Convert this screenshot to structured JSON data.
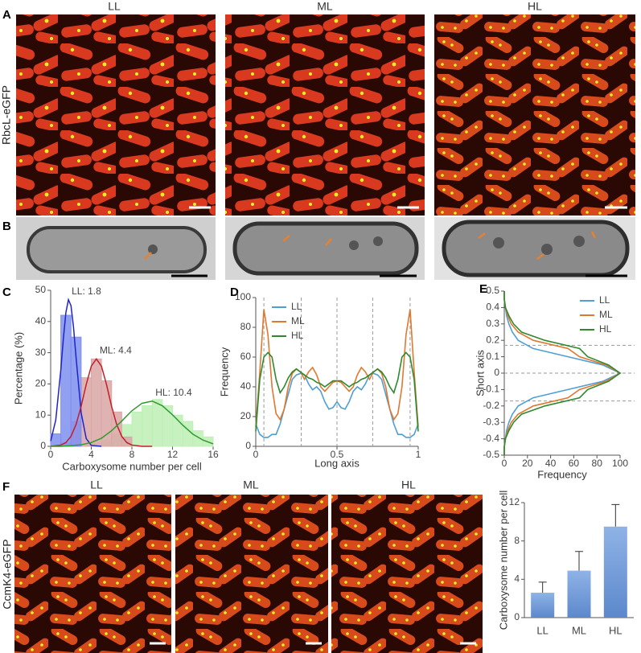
{
  "panel_labels": [
    "A",
    "B",
    "C",
    "D",
    "E",
    "F"
  ],
  "row_a": {
    "label": "RbcL-eGFP",
    "columns": [
      "LL",
      "ML",
      "HL"
    ]
  },
  "row_f": {
    "label": "CcmK4-eGFP",
    "columns": [
      "LL",
      "ML",
      "HL"
    ]
  },
  "chart_data": [
    {
      "type": "histogram",
      "ylabel": "Percentage (%)",
      "xlabel": "Carboxysome number per cell",
      "xlim": [
        0,
        16
      ],
      "xticks": [
        0,
        4,
        8,
        12,
        16
      ],
      "ylim": [
        0,
        50
      ],
      "yticks": [
        0,
        10,
        20,
        30,
        40,
        50
      ],
      "bins": [
        0,
        1,
        2,
        3,
        4,
        5,
        6,
        7,
        8,
        9,
        10,
        11,
        12,
        13,
        14,
        15,
        16
      ],
      "series": [
        {
          "label": "LL: 1.8",
          "color": "#7f8ff0",
          "line_color": "#1f24c8",
          "values": [
            4,
            42,
            35,
            0,
            0,
            0,
            0,
            0,
            0,
            0,
            0,
            0,
            0,
            0,
            0,
            0
          ],
          "fit_x": [
            0,
            0.5,
            1,
            1.25,
            1.5,
            1.75,
            2,
            2.25,
            2.5,
            3,
            3.5,
            4,
            5
          ],
          "fit": [
            1.7,
            8.4,
            24.5,
            34.5,
            42.9,
            47,
            45.1,
            38.2,
            28.5,
            10.8,
            2.5,
            0.3,
            0
          ]
        },
        {
          "label": "ML: 4.4",
          "color": "#dba6a6",
          "line_color": "#c0202a",
          "values": [
            0,
            1,
            8,
            22,
            28,
            21,
            11,
            3,
            0,
            0,
            0,
            0,
            0,
            0,
            0,
            0
          ],
          "fit_x": [
            0,
            1,
            1.5,
            2,
            2.5,
            3,
            3.5,
            4,
            4.5,
            5,
            5.5,
            6,
            6.5,
            7,
            7.5,
            8,
            9,
            10
          ],
          "fit": [
            0,
            0.4,
            1.2,
            3.2,
            7,
            12.8,
            19.8,
            25.7,
            28,
            25.7,
            19.8,
            12.8,
            7,
            3.2,
            1.2,
            0.4,
            0,
            0
          ]
        },
        {
          "label": "HL: 10.4",
          "color": "#bdf0b4",
          "line_color": "#2f9a2f",
          "values": [
            0,
            0,
            0,
            0,
            1,
            2,
            4,
            7,
            11,
            13,
            15,
            13,
            10,
            8,
            5,
            3
          ],
          "fit_x": [
            0,
            1,
            2,
            3,
            4,
            5,
            6,
            7,
            8,
            9,
            10,
            11,
            12,
            13,
            14,
            15,
            16
          ],
          "fit": [
            0,
            0,
            0.2,
            0.5,
            1.2,
            2.6,
            5,
            8.1,
            11.4,
            13.8,
            14.5,
            13,
            10.1,
            6.8,
            3.9,
            2,
            0.8
          ]
        }
      ]
    },
    {
      "type": "line",
      "ylabel": "Frequency",
      "xlabel": "Long axis",
      "legend": "upper center",
      "xlim": [
        0,
        1
      ],
      "xticks": [
        0,
        0.5,
        1
      ],
      "ylim": [
        0,
        100
      ],
      "yticks": [
        0,
        20,
        40,
        60,
        80,
        100
      ],
      "vlines": [
        0.05,
        0.28,
        0.5,
        0.72,
        0.95
      ],
      "x": [
        0,
        0.025,
        0.05,
        0.075,
        0.1,
        0.125,
        0.15,
        0.175,
        0.2,
        0.225,
        0.25,
        0.275,
        0.3,
        0.325,
        0.35,
        0.375,
        0.4,
        0.425,
        0.45,
        0.475,
        0.5,
        0.525,
        0.55,
        0.575,
        0.6,
        0.625,
        0.65,
        0.675,
        0.7,
        0.725,
        0.75,
        0.775,
        0.8,
        0.825,
        0.85,
        0.875,
        0.9,
        0.925,
        0.95,
        0.975,
        1
      ],
      "series": [
        {
          "name": "LL",
          "color": "#4f9fd6",
          "values": [
            15,
            8,
            6,
            6,
            8,
            8,
            15,
            25,
            35,
            45,
            48,
            49,
            48,
            42,
            38,
            40,
            37,
            30,
            25,
            26,
            30,
            26,
            25,
            30,
            37,
            40,
            38,
            42,
            48,
            49,
            48,
            45,
            35,
            25,
            15,
            8,
            8,
            6,
            6,
            8,
            15
          ]
        },
        {
          "name": "ML",
          "color": "#e0782e",
          "values": [
            13,
            50,
            92,
            75,
            40,
            22,
            18,
            25,
            40,
            49,
            52,
            50,
            45,
            50,
            53,
            48,
            40,
            37,
            40,
            43,
            44,
            43,
            40,
            37,
            40,
            48,
            53,
            50,
            45,
            50,
            52,
            49,
            40,
            25,
            18,
            22,
            40,
            75,
            92,
            50,
            13
          ]
        },
        {
          "name": "HL",
          "color": "#2f8a2f",
          "values": [
            10,
            45,
            60,
            63,
            60,
            45,
            36,
            40,
            46,
            50,
            52,
            50,
            48,
            46,
            45,
            43,
            42,
            40,
            42,
            44,
            44,
            44,
            42,
            40,
            42,
            43,
            45,
            46,
            48,
            50,
            52,
            50,
            46,
            40,
            36,
            45,
            60,
            63,
            60,
            45,
            10
          ]
        }
      ]
    },
    {
      "type": "line",
      "orientation": "horizontal",
      "ylabel": "Short axis",
      "xlabel": "Frequency",
      "legend": "upper right",
      "xlim": [
        0,
        100
      ],
      "xticks": [
        0,
        20,
        40,
        60,
        80,
        100
      ],
      "ylim": [
        -0.5,
        0.5
      ],
      "yticks": [
        -0.5,
        -0.4,
        -0.3,
        -0.2,
        -0.1,
        0,
        0.1,
        0.2,
        0.3,
        0.4,
        0.5
      ],
      "hlines": [
        0.17,
        0,
        -0.17
      ],
      "y": [
        -0.5,
        -0.45,
        -0.4,
        -0.35,
        -0.3,
        -0.25,
        -0.2,
        -0.15,
        -0.1,
        -0.05,
        0,
        0.05,
        0.1,
        0.15,
        0.2,
        0.25,
        0.3,
        0.35,
        0.4,
        0.45,
        0.5
      ],
      "series": [
        {
          "name": "LL",
          "color": "#4f9fd6",
          "values": [
            0,
            0,
            1,
            2,
            4,
            7,
            12,
            25,
            55,
            85,
            100,
            85,
            55,
            25,
            12,
            7,
            4,
            2,
            1,
            0,
            0
          ]
        },
        {
          "name": "ML",
          "color": "#e0782e",
          "values": [
            0,
            0,
            1,
            3,
            6,
            12,
            25,
            55,
            65,
            88,
            100,
            88,
            65,
            55,
            25,
            12,
            6,
            3,
            1,
            0,
            0
          ]
        },
        {
          "name": "HL",
          "color": "#2f8a2f",
          "values": [
            0,
            0,
            1,
            4,
            8,
            15,
            35,
            65,
            72,
            90,
            100,
            90,
            72,
            65,
            35,
            15,
            8,
            4,
            1,
            0,
            0
          ]
        }
      ]
    },
    {
      "type": "bar",
      "ylabel": "Carboxysome number per cell",
      "color": "#6f9ad8",
      "categories": [
        "LL",
        "ML",
        "HL"
      ],
      "values": [
        2.6,
        4.9,
        9.5
      ],
      "errors": [
        1.1,
        2.0,
        2.3
      ],
      "ylim": [
        0,
        12
      ],
      "yticks": [
        0,
        4,
        8,
        12
      ]
    }
  ]
}
